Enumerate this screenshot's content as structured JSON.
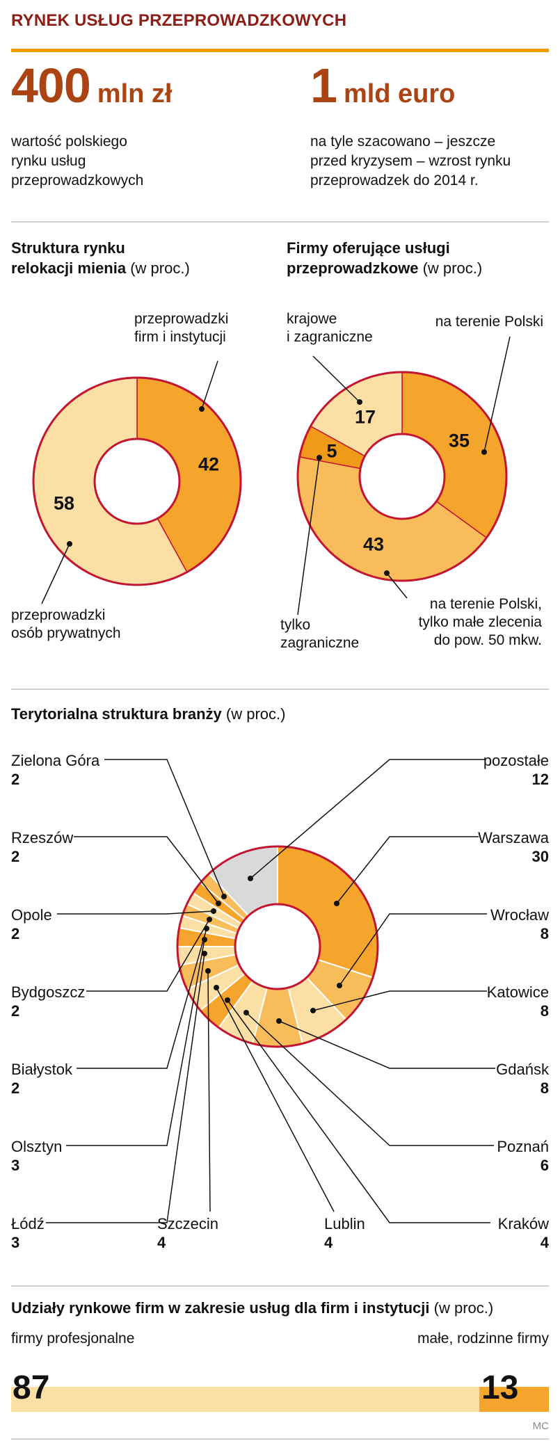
{
  "header": {
    "title": "RYNEK USŁUG PRZEPROWADZKOWYCH"
  },
  "stats": {
    "left": {
      "value": "400",
      "unit": "mln zł",
      "caption": [
        "wartość polskiego",
        "rynku usług",
        "przeprowadzkowych"
      ]
    },
    "right": {
      "value": "1",
      "unit": "mld euro",
      "caption": [
        "na tyle szacowano – jeszcze",
        "przed kryzysem – wzrost rynku",
        "przeprowadzek do 2014 r."
      ]
    }
  },
  "footer": {
    "credit": "MC"
  },
  "colors": {
    "accent_orange": "#F59B00",
    "heading_red": "#8E1E15",
    "number_rust": "#AC4313",
    "ring": "#C31432",
    "other_gray": "#D9D9D9"
  },
  "chart_data": [
    {
      "type": "pie",
      "variant": "donut",
      "title_bold": [
        "Struktura rynku",
        "relokacji mienia"
      ],
      "title_suffix": " (w proc.)",
      "segments": [
        {
          "label": "przeprowadzki firm i instytucji",
          "value": 42,
          "color": "#F5A42C"
        },
        {
          "label": "przeprowadzki osób prywatnych",
          "value": 58,
          "color": "#FBDFA4"
        }
      ],
      "callouts": {
        "firms": [
          "przeprowadzki",
          "firm i instytucji"
        ],
        "private": [
          "przeprowadzki",
          "osób prywatnych"
        ]
      },
      "ring_color": "#C31432"
    },
    {
      "type": "pie",
      "variant": "donut",
      "title_bold": [
        "Firmy oferujące usługi",
        "przeprowadzkowe"
      ],
      "title_suffix": " (w proc.)",
      "segments": [
        {
          "label": "na terenie Polski",
          "value": 35,
          "color": "#F5A42C"
        },
        {
          "label": "na terenie Polski, tylko małe zlecenia do pow. 50 mkw.",
          "value": 43,
          "color": "#F8BC5A"
        },
        {
          "label": "tylko zagraniczne",
          "value": 5,
          "color": "#F09A19"
        },
        {
          "label": "krajowe i zagraniczne",
          "value": 17,
          "color": "#FBDFA4"
        }
      ],
      "callouts": {
        "domestic_foreign": [
          "krajowe",
          "i zagraniczne"
        ],
        "poland": "na terenie Polski",
        "foreign_only": [
          "tylko",
          "zagraniczne"
        ],
        "poland_small": [
          "na terenie Polski,",
          "tylko małe zlecenia",
          "do pow. 50 mkw."
        ]
      },
      "ring_color": "#C31432"
    },
    {
      "type": "pie",
      "variant": "donut",
      "title_bold": "Terytorialna struktura branży",
      "title_suffix": " (w proc.)",
      "segments": [
        {
          "label": "Warszawa",
          "value": 30,
          "color": "#F5A42C"
        },
        {
          "label": "Wrocław",
          "value": 8,
          "color": "#F8BC5A"
        },
        {
          "label": "Katowice",
          "value": 8,
          "color": "#FBDFA4"
        },
        {
          "label": "Gdańsk",
          "value": 8,
          "color": "#F8BC5A"
        },
        {
          "label": "Poznań",
          "value": 6,
          "color": "#FBDFA4"
        },
        {
          "label": "Kraków",
          "value": 4,
          "color": "#F5A42C"
        },
        {
          "label": "Lublin",
          "value": 4,
          "color": "#FBDFA4"
        },
        {
          "label": "Szczecin",
          "value": 4,
          "color": "#F8BC5A"
        },
        {
          "label": "Łódź",
          "value": 3,
          "color": "#FBDFA4"
        },
        {
          "label": "Olsztyn",
          "value": 3,
          "color": "#F5A42C"
        },
        {
          "label": "Białystok",
          "value": 2,
          "color": "#FBDFA4"
        },
        {
          "label": "Bydgoszcz",
          "value": 2,
          "color": "#F8BC5A"
        },
        {
          "label": "Opole",
          "value": 2,
          "color": "#FBDFA4"
        },
        {
          "label": "Rzeszów",
          "value": 2,
          "color": "#F5A42C"
        },
        {
          "label": "Zielona Góra",
          "value": 2,
          "color": "#F8BC5A"
        },
        {
          "label": "pozostałe",
          "value": 12,
          "color": "#D9D9D9"
        }
      ],
      "ring_color": "#C31432"
    },
    {
      "type": "bar",
      "title_bold": "Udziały rynkowe firm w zakresie usług dla firm i instytucji",
      "title_suffix": " (w proc.)",
      "categories": [
        "firmy profesjonalne",
        "małe, rodzinne firmy"
      ],
      "values": [
        87,
        13
      ],
      "colors": [
        "#FBDFA4",
        "#F5A42C"
      ]
    }
  ]
}
